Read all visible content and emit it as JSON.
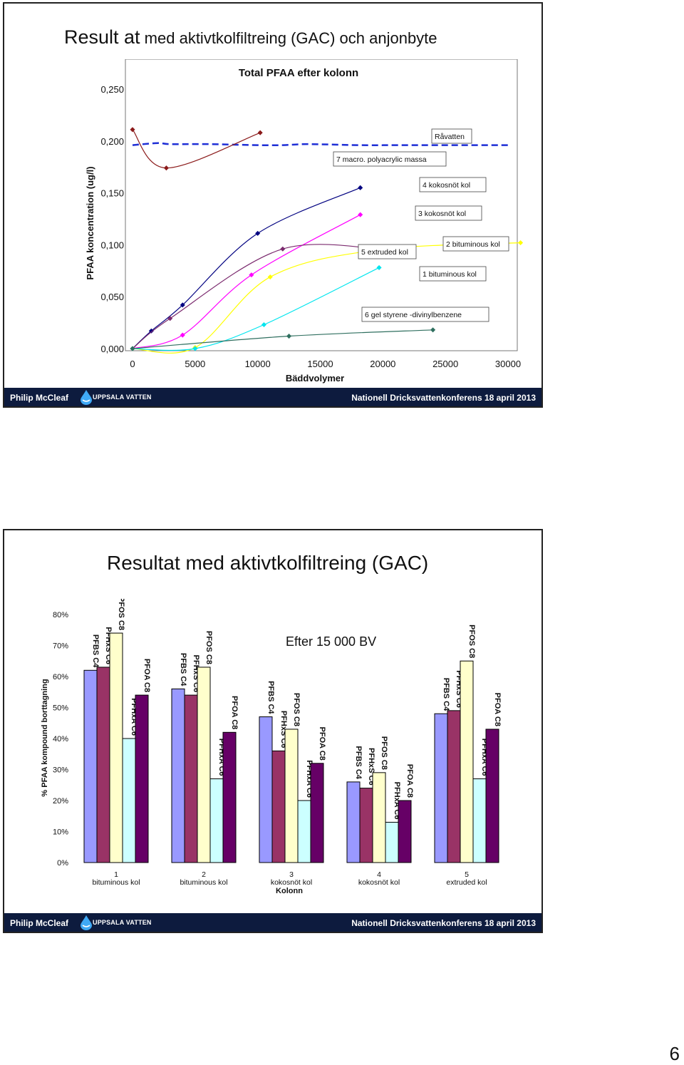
{
  "slide1": {
    "title_main": "Result at",
    "title_rest": " med aktivtkolfiltreing (GAC) och anjonbyte",
    "footer_author": "Philip McCleaf",
    "footer_logo": "UPPSALA VATTEN",
    "footer_conf": "Nationell Dricksvattenkonferens 18 april 2013"
  },
  "slide2": {
    "title": "Resultat med aktivtkolfiltreing (GAC)",
    "footer_author": "Philip McCleaf",
    "footer_logo": "UPPSALA VATTEN",
    "footer_conf": "Nationell Dricksvattenkonferens 18 april 2013"
  },
  "page_number": "6",
  "chart_data": [
    {
      "type": "line",
      "title": "Total PFAA efter kolonn",
      "xlabel": "Bäddvolymer",
      "ylabel": "PFAA koncentration (ug/l)",
      "xlim": [
        0,
        30000
      ],
      "ylim": [
        0,
        0.25
      ],
      "x_ticks": [
        "0",
        "5000",
        "10000",
        "15000",
        "20000",
        "25000",
        "30000"
      ],
      "y_ticks": [
        "0,000",
        "0,050",
        "0,100",
        "0,150",
        "0,200",
        "0,250"
      ],
      "grid": false,
      "series": [
        {
          "name": "Råvatten",
          "color": "#1f2fd6",
          "style": "dashed",
          "x": [
            0,
            2000,
            3000,
            6000,
            10000,
            12000,
            14000,
            18000,
            21000,
            24000,
            27000,
            30000
          ],
          "y": [
            0.196,
            0.198,
            0.197,
            0.197,
            0.196,
            0.196,
            0.197,
            0.196,
            0.196,
            0.196,
            0.196,
            0.196
          ]
        },
        {
          "name": "7 macro. polyacrylic massa",
          "color": "#8b1a1a",
          "style": "solid",
          "x": [
            0,
            2700,
            10200
          ],
          "y": [
            0.211,
            0.174,
            0.208
          ]
        },
        {
          "name": "4 kokosnöt kol",
          "color": "#000080",
          "style": "solid",
          "x": [
            0,
            1500,
            4000,
            10000,
            18200
          ],
          "y": [
            0.0,
            0.017,
            0.042,
            0.111,
            0.155
          ]
        },
        {
          "name": "3 kokosnöt kol",
          "color": "#ff00ff",
          "style": "solid",
          "x": [
            0,
            4000,
            9500,
            18200
          ],
          "y": [
            0.0,
            0.013,
            0.071,
            0.129
          ]
        },
        {
          "name": "2 bituminous kol",
          "color": "#7b2a6e",
          "style": "solid",
          "x": [
            0,
            3000,
            12000,
            21000
          ],
          "y": [
            0.0,
            0.029,
            0.096,
            0.094
          ]
        },
        {
          "name": "5 extruded kol",
          "color": "#ffff00",
          "style": "solid",
          "x": [
            0,
            5000,
            11000,
            19500,
            31000
          ],
          "y": [
            0.0,
            0.001,
            0.069,
            0.095,
            0.102
          ]
        },
        {
          "name": "1 bituminous kol",
          "color": "#00e5ee",
          "style": "solid",
          "x": [
            0,
            5000,
            10500,
            19700
          ],
          "y": [
            0.0,
            0.0,
            0.023,
            0.078
          ]
        },
        {
          "name": "6 gel styrene -divinylbenzene",
          "color": "#2f6f5f",
          "style": "solid",
          "x": [
            0,
            12500,
            24000
          ],
          "y": [
            0.0,
            0.012,
            0.018
          ]
        }
      ]
    },
    {
      "type": "bar",
      "xlabel": "Kolonn",
      "ylabel": "% PFAA kompound borttagning",
      "ylim": [
        0,
        80
      ],
      "y_ticks": [
        "0%",
        "10%",
        "20%",
        "30%",
        "40%",
        "50%",
        "60%",
        "70%",
        "80%"
      ],
      "annotation": "Efter 15 000 BV",
      "categories": [
        "1\nbituminous kol",
        "2\nbituminous kol",
        "3\nkokosnöt kol",
        "4\nkokosnöt kol",
        "5\nextruded kol"
      ],
      "series": [
        {
          "name": "PFBS C4",
          "color": "#9999ff",
          "values": [
            62,
            56,
            47,
            26,
            48
          ]
        },
        {
          "name": "PFHxS C6",
          "color": "#993366",
          "values": [
            63,
            54,
            36,
            24,
            49
          ]
        },
        {
          "name": "PFOS C8",
          "color": "#ffffcc",
          "values": [
            74,
            63,
            43,
            29,
            65
          ]
        },
        {
          "name": "PFHxA C6",
          "color": "#ccffff",
          "values": [
            40,
            27,
            20,
            13,
            27
          ]
        },
        {
          "name": "PFOA C8",
          "color": "#660066",
          "values": [
            54,
            42,
            32,
            20,
            43
          ]
        }
      ]
    }
  ]
}
